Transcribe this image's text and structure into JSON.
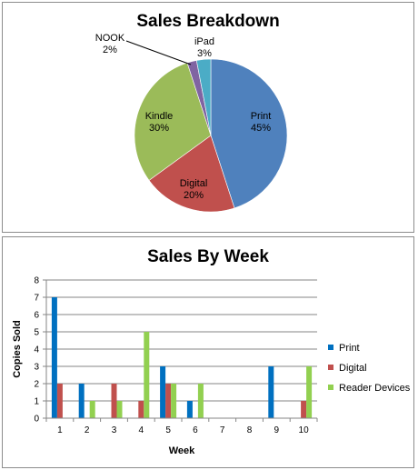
{
  "chart_data": [
    {
      "type": "pie",
      "title": "Sales Breakdown",
      "slices": [
        {
          "label": "Print",
          "value": 45,
          "display": "45%",
          "color": "#4f81bd"
        },
        {
          "label": "Digital",
          "value": 20,
          "display": "20%",
          "color": "#c0504d"
        },
        {
          "label": "Kindle",
          "value": 30,
          "display": "30%",
          "color": "#9bbb59"
        },
        {
          "label": "NOOK",
          "value": 2,
          "display": "2%",
          "color": "#8064a2"
        },
        {
          "label": "iPad",
          "value": 3,
          "display": "3%",
          "color": "#4bacc6"
        }
      ]
    },
    {
      "type": "bar",
      "title": "Sales By Week",
      "xlabel": "Week",
      "ylabel": "Copies Sold",
      "ylim": [
        0,
        8
      ],
      "yticks": [
        0,
        1,
        2,
        3,
        4,
        5,
        6,
        7,
        8
      ],
      "grid": true,
      "legend_position": "right",
      "categories": [
        "1",
        "2",
        "3",
        "4",
        "5",
        "6",
        "7",
        "8",
        "9",
        "10"
      ],
      "series": [
        {
          "name": "Print",
          "color": "#0070c0",
          "values": [
            7,
            2,
            0,
            0,
            3,
            1,
            0,
            0,
            3,
            0
          ]
        },
        {
          "name": "Digital",
          "color": "#c0504d",
          "values": [
            2,
            0,
            2,
            1,
            2,
            0,
            0,
            0,
            0,
            1
          ]
        },
        {
          "name": "Reader Devices",
          "color": "#92d050",
          "values": [
            0,
            1,
            1,
            5,
            2,
            2,
            0,
            0,
            0,
            3
          ]
        }
      ]
    }
  ]
}
